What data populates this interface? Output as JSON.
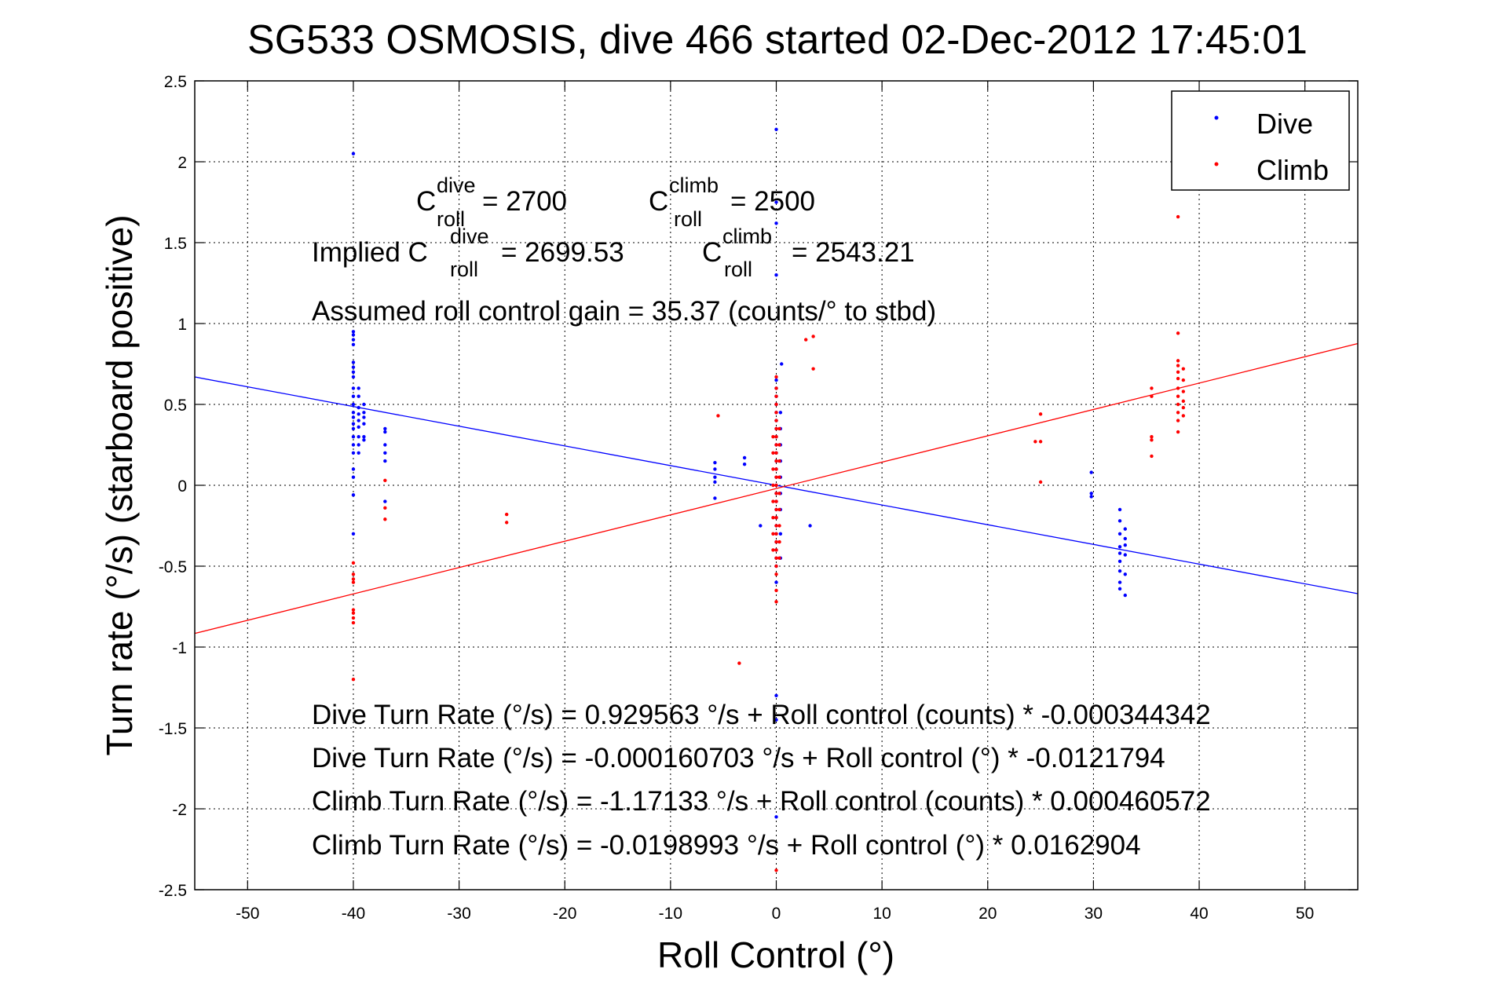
{
  "chart_data": {
    "type": "scatter",
    "title": "SG533 OSMOSIS, dive 466 started 02-Dec-2012 17:45:01",
    "xlabel": "Roll Control (°)",
    "ylabel": "Turn rate (°/s)  (starboard positive)",
    "xlim": [
      -55,
      55
    ],
    "ylim": [
      -2.5,
      2.5
    ],
    "xticks": [
      "-50",
      "-40",
      "-30",
      "-20",
      "-10",
      "0",
      "10",
      "20",
      "30",
      "40",
      "50"
    ],
    "yticks": [
      "2.5",
      "2",
      "1.5",
      "1",
      "0.5",
      "0",
      "-0.5",
      "-1",
      "-1.5",
      "-2",
      "-2.5"
    ],
    "grid": true,
    "legend_position": "top-right",
    "colors": {
      "dive": "#0000ff",
      "climb": "#ff0000"
    },
    "series": [
      {
        "name": "Dive",
        "points": [
          [
            -40,
            2.05
          ],
          [
            -40,
            0.95
          ],
          [
            -40,
            0.93
          ],
          [
            -40,
            0.9
          ],
          [
            -40,
            0.87
          ],
          [
            -40,
            0.76
          ],
          [
            -40,
            0.73
          ],
          [
            -40,
            0.7
          ],
          [
            -40,
            0.67
          ],
          [
            -40,
            0.6
          ],
          [
            -40,
            0.55
          ],
          [
            -40,
            0.5
          ],
          [
            -40,
            0.45
          ],
          [
            -40,
            0.42
          ],
          [
            -40,
            0.38
          ],
          [
            -40,
            0.35
          ],
          [
            -40,
            0.3
          ],
          [
            -40,
            0.25
          ],
          [
            -40,
            0.2
          ],
          [
            -40,
            0.1
          ],
          [
            -40,
            0.05
          ],
          [
            -40,
            -0.06
          ],
          [
            -40,
            -0.3
          ],
          [
            -39.5,
            0.6
          ],
          [
            -39.5,
            0.55
          ],
          [
            -39.5,
            0.48
          ],
          [
            -39.5,
            0.44
          ],
          [
            -39.5,
            0.4
          ],
          [
            -39.5,
            0.36
          ],
          [
            -39.5,
            0.3
          ],
          [
            -39.5,
            0.25
          ],
          [
            -39.5,
            0.2
          ],
          [
            -39,
            0.5
          ],
          [
            -39,
            0.45
          ],
          [
            -39,
            0.42
          ],
          [
            -39,
            0.38
          ],
          [
            -39,
            0.3
          ],
          [
            -39,
            0.28
          ],
          [
            -37,
            0.35
          ],
          [
            -37,
            0.33
          ],
          [
            -37,
            0.25
          ],
          [
            -37,
            0.2
          ],
          [
            -37,
            0.15
          ],
          [
            -37,
            -0.1
          ],
          [
            -5.8,
            0.14
          ],
          [
            -5.8,
            0.1
          ],
          [
            -5.8,
            0.05
          ],
          [
            -5.8,
            0.02
          ],
          [
            -5.8,
            -0.08
          ],
          [
            -3,
            0.17
          ],
          [
            -3,
            0.13
          ],
          [
            -1.5,
            -0.25
          ],
          [
            0,
            2.2
          ],
          [
            0,
            1.75
          ],
          [
            0,
            1.62
          ],
          [
            0,
            1.3
          ],
          [
            0,
            0.65
          ],
          [
            0,
            0.6
          ],
          [
            0,
            0.55
          ],
          [
            0,
            0.5
          ],
          [
            0,
            0.45
          ],
          [
            0,
            0.4
          ],
          [
            0,
            0.35
          ],
          [
            0,
            0.3
          ],
          [
            0,
            0.25
          ],
          [
            0,
            0.2
          ],
          [
            0,
            0.15
          ],
          [
            0,
            0.1
          ],
          [
            0,
            0.05
          ],
          [
            0,
            0.0
          ],
          [
            0,
            -0.05
          ],
          [
            0,
            -0.1
          ],
          [
            0,
            -0.15
          ],
          [
            0,
            -0.2
          ],
          [
            0,
            -0.25
          ],
          [
            0,
            -0.3
          ],
          [
            0,
            -0.35
          ],
          [
            0,
            -0.4
          ],
          [
            0,
            -0.45
          ],
          [
            0,
            -0.5
          ],
          [
            0,
            -0.6
          ],
          [
            0,
            -1.3
          ],
          [
            0,
            -1.45
          ],
          [
            0,
            -2.05
          ],
          [
            0.4,
            0.45
          ],
          [
            0.4,
            0.35
          ],
          [
            0.4,
            0.25
          ],
          [
            0.4,
            0.15
          ],
          [
            0.4,
            0.05
          ],
          [
            0.4,
            -0.05
          ],
          [
            0.4,
            -0.15
          ],
          [
            0.4,
            -0.3
          ],
          [
            0.4,
            -0.45
          ],
          [
            0.5,
            0.75
          ],
          [
            3.2,
            -0.25
          ],
          [
            29.8,
            0.08
          ],
          [
            29.8,
            -0.05
          ],
          [
            29.8,
            -0.07
          ],
          [
            32.5,
            -0.15
          ],
          [
            32.5,
            -0.22
          ],
          [
            32.5,
            -0.3
          ],
          [
            32.5,
            -0.38
          ],
          [
            32.5,
            -0.42
          ],
          [
            32.5,
            -0.47
          ],
          [
            32.5,
            -0.53
          ],
          [
            32.5,
            -0.6
          ],
          [
            32.5,
            -0.64
          ],
          [
            33,
            -0.27
          ],
          [
            33,
            -0.33
          ],
          [
            33,
            -0.37
          ],
          [
            33,
            -0.43
          ],
          [
            33,
            -0.55
          ],
          [
            33,
            -0.68
          ]
        ],
        "fit": {
          "slope": -0.0121794,
          "intercept": -0.000160703
        }
      },
      {
        "name": "Climb",
        "points": [
          [
            -40,
            -0.48
          ],
          [
            -40,
            -0.55
          ],
          [
            -40,
            -0.58
          ],
          [
            -40,
            -0.6
          ],
          [
            -40,
            -0.77
          ],
          [
            -40,
            -0.79
          ],
          [
            -40,
            -0.82
          ],
          [
            -40,
            -0.85
          ],
          [
            -40,
            -1.2
          ],
          [
            -37,
            0.03
          ],
          [
            -37,
            -0.14
          ],
          [
            -37,
            -0.21
          ],
          [
            -25.5,
            -0.18
          ],
          [
            -25.5,
            -0.23
          ],
          [
            -5.5,
            0.43
          ],
          [
            -3.5,
            -1.1
          ],
          [
            0,
            0.67
          ],
          [
            0,
            0.6
          ],
          [
            0,
            0.55
          ],
          [
            0,
            0.5
          ],
          [
            0,
            0.45
          ],
          [
            0,
            0.4
          ],
          [
            0,
            0.35
          ],
          [
            0,
            0.3
          ],
          [
            0,
            0.25
          ],
          [
            0,
            0.2
          ],
          [
            0,
            0.15
          ],
          [
            0,
            0.1
          ],
          [
            0,
            0.05
          ],
          [
            0,
            0.0
          ],
          [
            0,
            -0.05
          ],
          [
            0,
            -0.1
          ],
          [
            0,
            -0.15
          ],
          [
            0,
            -0.2
          ],
          [
            0,
            -0.25
          ],
          [
            0,
            -0.3
          ],
          [
            0,
            -0.35
          ],
          [
            0,
            -0.4
          ],
          [
            0,
            -0.45
          ],
          [
            0,
            -0.5
          ],
          [
            0,
            -0.55
          ],
          [
            0,
            -0.65
          ],
          [
            0,
            -0.72
          ],
          [
            0,
            -2.38
          ],
          [
            -0.3,
            0.3
          ],
          [
            -0.3,
            0.2
          ],
          [
            -0.3,
            0.1
          ],
          [
            -0.3,
            0.0
          ],
          [
            -0.3,
            -0.1
          ],
          [
            -0.3,
            -0.2
          ],
          [
            -0.3,
            -0.3
          ],
          [
            -0.3,
            -0.4
          ],
          [
            0.3,
            0.35
          ],
          [
            0.3,
            0.25
          ],
          [
            0.3,
            0.15
          ],
          [
            0.3,
            0.05
          ],
          [
            0.3,
            -0.05
          ],
          [
            0.3,
            -0.15
          ],
          [
            0.3,
            -0.25
          ],
          [
            0.3,
            -0.35
          ],
          [
            0.3,
            -0.45
          ],
          [
            2.8,
            0.9
          ],
          [
            3.5,
            0.92
          ],
          [
            3.5,
            0.72
          ],
          [
            24.5,
            0.27
          ],
          [
            25,
            0.27
          ],
          [
            25,
            0.44
          ],
          [
            25,
            0.02
          ],
          [
            35.5,
            0.6
          ],
          [
            35.5,
            0.55
          ],
          [
            35.5,
            0.3
          ],
          [
            35.5,
            0.28
          ],
          [
            35.5,
            0.18
          ],
          [
            38,
            0.94
          ],
          [
            38,
            0.77
          ],
          [
            38,
            0.74
          ],
          [
            38,
            0.7
          ],
          [
            38,
            0.66
          ],
          [
            38,
            0.6
          ],
          [
            38,
            0.55
          ],
          [
            38,
            0.5
          ],
          [
            38,
            0.45
          ],
          [
            38,
            0.4
          ],
          [
            38,
            0.33
          ],
          [
            38,
            1.66
          ],
          [
            38.5,
            0.72
          ],
          [
            38.5,
            0.65
          ],
          [
            38.5,
            0.58
          ],
          [
            38.5,
            0.52
          ],
          [
            38.5,
            0.48
          ],
          [
            38.5,
            0.43
          ]
        ],
        "fit": {
          "slope": 0.0162904,
          "intercept": -0.0198993
        }
      }
    ]
  },
  "annotations": {
    "c_letter": "C",
    "sup_dive": "dive",
    "sup_climb": "climb",
    "sub_roll": "roll",
    "c_dive_value": "= 2700",
    "c_climb_value": "= 2500",
    "implied_prefix": "Implied C",
    "implied_dive_value": "= 2699.53",
    "implied_climb_value": "= 2543.21",
    "gain": "Assumed roll control gain = 35.37 (counts/° to stbd)",
    "eq1": "Dive Turn Rate (°/s) = 0.929563 °/s + Roll control (counts) * -0.000344342",
    "eq2": "Dive Turn Rate (°/s) = -0.000160703 °/s + Roll control (°) * -0.0121794",
    "eq3": "Climb Turn Rate (°/s) = -1.17133 °/s + Roll control (counts) * 0.000460572",
    "eq4": "Climb Turn Rate (°/s) = -0.0198993 °/s + Roll control (°) * 0.0162904"
  }
}
